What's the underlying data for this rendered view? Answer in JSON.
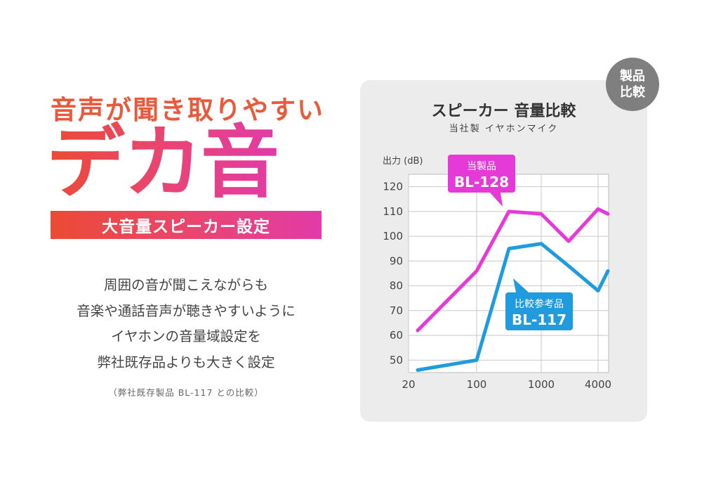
{
  "left": {
    "headline": "音声が聞き取りやすい",
    "big": "デカ音",
    "banner": "大音量スピーカー設定",
    "desc": [
      "周囲の音が聞こえながらも",
      "音楽や通話音声が聴きやすいように",
      "イヤホンの音量域設定を",
      "弊社既存品よりも大きく設定"
    ],
    "note": "（弊社既存製品 BL-117 との比較）"
  },
  "badge": [
    "製品",
    "比較"
  ],
  "chart_data": {
    "type": "line",
    "title": "スピーカー 音量比較",
    "subtitle": "当社製 イヤホンマイク",
    "ylabel": "出力 (dB)",
    "yticks": [
      120,
      110,
      100,
      90,
      80,
      70,
      60,
      50
    ],
    "xticks": [
      "20",
      "100",
      "1000",
      "4000"
    ],
    "ylim": [
      45,
      125
    ],
    "grid": true,
    "x_positions": [
      20,
      100,
      300,
      1000,
      2500,
      4000,
      6000
    ],
    "series": [
      {
        "label_top": "当製品",
        "label_bottom": "BL-128",
        "color": "#e63ad8",
        "x": [
          20,
          100,
          300,
          1000,
          2500,
          4000,
          6000
        ],
        "y": [
          62,
          86,
          110,
          109,
          98,
          111,
          109
        ]
      },
      {
        "label_top": "比較参考品",
        "label_bottom": "BL-117",
        "color": "#1f9bde",
        "x": [
          20,
          100,
          300,
          1000,
          2500,
          4000,
          6000
        ],
        "y": [
          46,
          50,
          95,
          97,
          88,
          78,
          86
        ]
      }
    ]
  }
}
